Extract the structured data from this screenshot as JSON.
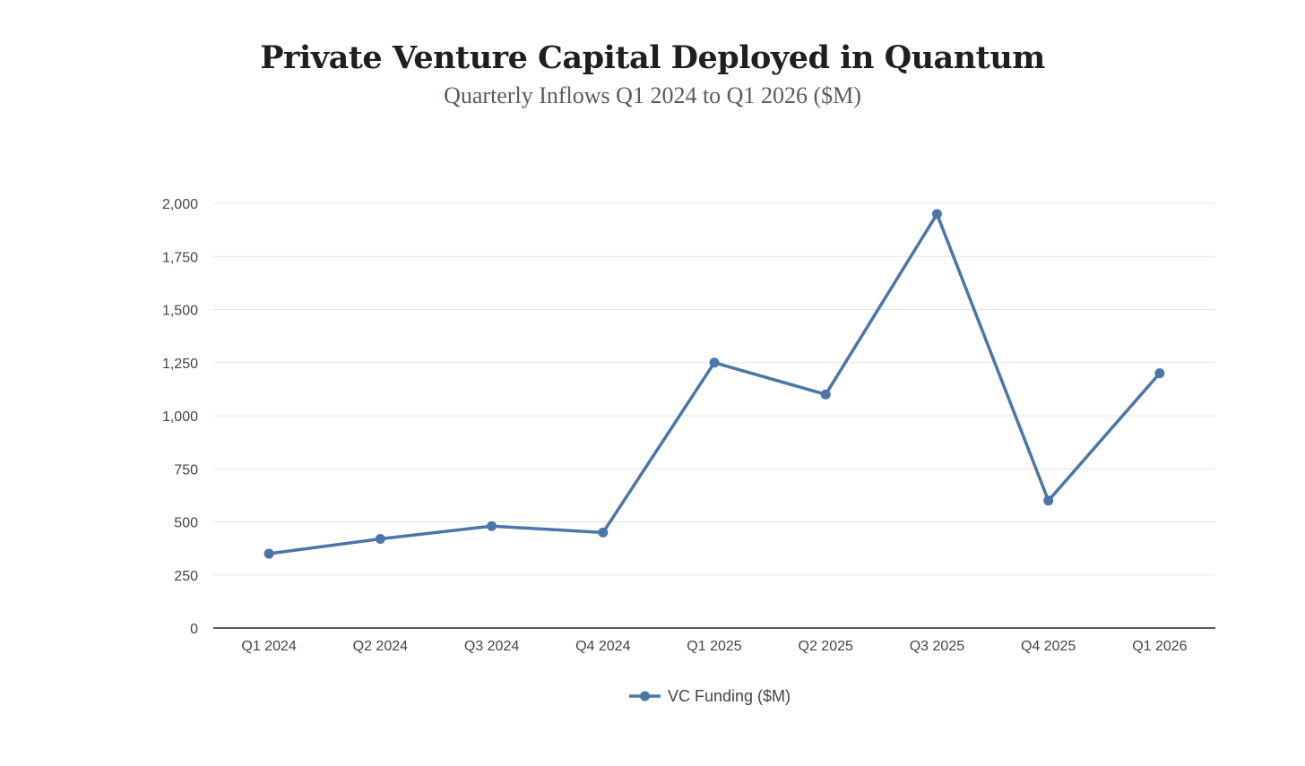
{
  "chart_data": {
    "type": "line",
    "title": "Private Venture Capital Deployed in Quantum",
    "subtitle": "Quarterly Inflows Q1 2024 to Q1 2026 ($M)",
    "xlabel": "",
    "ylabel": "",
    "categories": [
      "Q1 2024",
      "Q2 2024",
      "Q3 2024",
      "Q4 2024",
      "Q1 2025",
      "Q2 2025",
      "Q3 2025",
      "Q4 2025",
      "Q1 2026"
    ],
    "series": [
      {
        "name": "VC Funding ($M)",
        "values": [
          350,
          420,
          480,
          450,
          1250,
          1100,
          1950,
          600,
          1200
        ],
        "color": "#4a76a8"
      }
    ],
    "ylim": [
      0,
      2000
    ],
    "yticks": [
      0,
      250,
      500,
      750,
      1000,
      1250,
      1500,
      1750,
      2000
    ],
    "ytick_labels": [
      "0",
      "250",
      "500",
      "750",
      "1,000",
      "1,250",
      "1,500",
      "1,750",
      "2,000"
    ],
    "grid": true,
    "legend": "bottom-center"
  }
}
